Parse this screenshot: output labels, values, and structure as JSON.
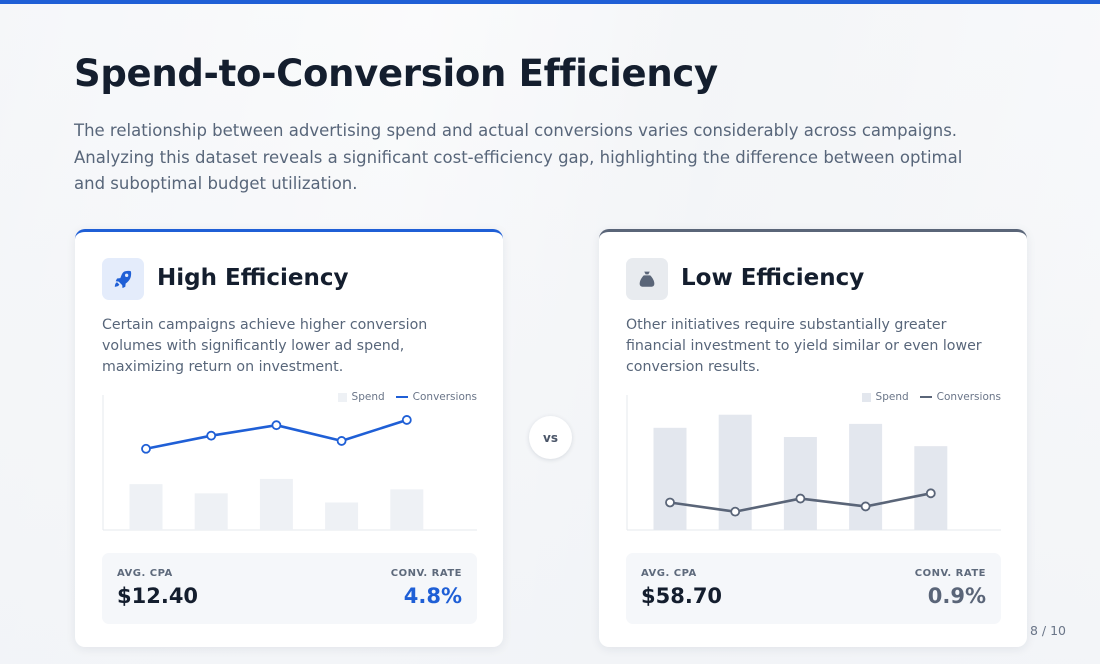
{
  "title": "Spend-to-Conversion Efficiency",
  "subtitle": "The relationship between advertising spend and actual conversions varies considerably across campaigns. Analyzing this dataset reveals a significant cost-efficiency gap, highlighting the difference between optimal and suboptimal budget utilization.",
  "accent_color": "#1f5fd6",
  "muted_color": "#5a6578",
  "cards": [
    {
      "title": "High Efficiency",
      "icon": "rocket-icon",
      "description": "Certain campaigns achieve higher conversion volumes with significantly lower ad spend, maximizing return on investment.",
      "legend": {
        "spend": "Spend",
        "conversions": "Conversions"
      },
      "stats": {
        "cpa_label": "AVG. CPA",
        "cpa_value": "$12.40",
        "rate_label": "CONV. RATE",
        "rate_value": "4.8%"
      }
    },
    {
      "title": "Low Efficiency",
      "icon": "money-bag-icon",
      "description": "Other initiatives require substantially greater financial investment to yield similar or even lower conversion results.",
      "legend": {
        "spend": "Spend",
        "conversions": "Conversions"
      },
      "stats": {
        "cpa_label": "AVG. CPA",
        "cpa_value": "$58.70",
        "rate_label": "CONV. RATE",
        "rate_value": "0.9%"
      }
    }
  ],
  "vs_label": "vs",
  "page_number": "8 / 10",
  "chart_data": [
    {
      "type": "bar",
      "series": [
        {
          "name": "Spend",
          "kind": "bar",
          "values": [
            35,
            28,
            39,
            21,
            31
          ],
          "color": "#eef1f5"
        },
        {
          "name": "Conversions",
          "kind": "line",
          "values": [
            62,
            72,
            80,
            68,
            84
          ],
          "color": "#1f5fd6"
        }
      ],
      "ylim": [
        0,
        100
      ]
    },
    {
      "type": "bar",
      "series": [
        {
          "name": "Spend",
          "kind": "bar",
          "values": [
            78,
            88,
            71,
            81,
            64
          ],
          "color": "#e3e7ee"
        },
        {
          "name": "Conversions",
          "kind": "line",
          "values": [
            21,
            14,
            24,
            18,
            28
          ],
          "color": "#5a6578"
        }
      ],
      "ylim": [
        0,
        100
      ]
    }
  ]
}
